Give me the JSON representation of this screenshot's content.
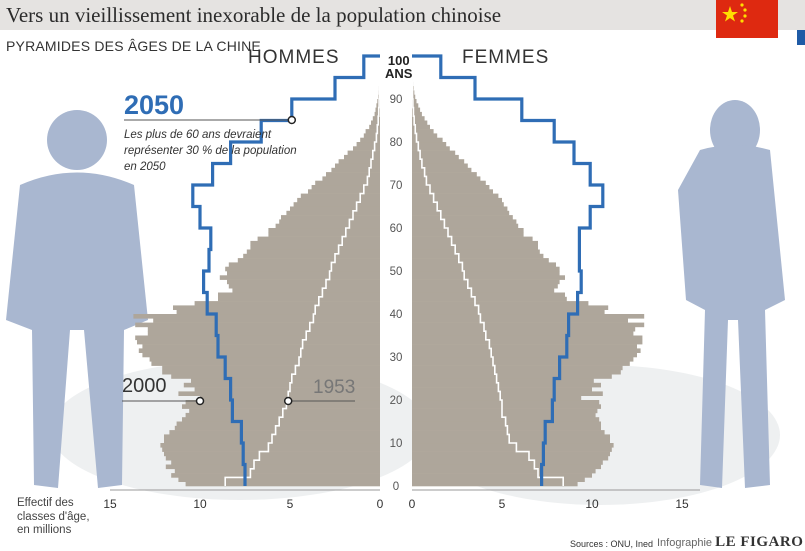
{
  "header": {
    "title": "Vers un vieillissement inexorable de la population chinoise",
    "subtitle": "PYRAMIDES DES ÂGES DE LA CHINE"
  },
  "labels": {
    "men": "HOMMES",
    "women": "FEMMES",
    "age_top_value": "100",
    "age_unit": "ANS",
    "year_2050": "2050",
    "year_2000": "2000",
    "year_1953": "1953",
    "note_2050": "Les plus de 60 ans devraient représenter 30 % de la population en 2050",
    "x_axis_label": "Effectif des classes d'âge, en millions",
    "sources": "Sources : ONU, Ined",
    "credit_prefix": "Infographie",
    "credit_brand": "LE FIGARO"
  },
  "colors": {
    "bars_2000": "#aea69b",
    "line_2050": "#2f6db5",
    "line_1953": "#ffffff",
    "figure_silhouette": "#a9b7d0",
    "flag": "#de2910"
  },
  "chart_data": {
    "type": "bar",
    "orientation": "population-pyramid",
    "title": "PYRAMIDES DES ÂGES DE LA CHINE",
    "xlabel": "Effectif des classes d'âge, en millions",
    "ylabel": "ANS",
    "x_ticks_left": [
      "15",
      "10",
      "5",
      "0"
    ],
    "x_ticks_right": [
      "0",
      "5",
      "10",
      "15"
    ],
    "y_ticks": [
      "0",
      "10",
      "20",
      "30",
      "40",
      "50",
      "60",
      "70",
      "80",
      "90",
      "100"
    ],
    "xlim": [
      0,
      16.5
    ],
    "ylim": [
      0,
      100
    ],
    "series_2000": {
      "name": "2000",
      "kind": "bars",
      "age_step": 1,
      "men": [
        10.8,
        11.2,
        11.6,
        11.4,
        11.9,
        11.6,
        11.9,
        12.0,
        12.1,
        12.2,
        12.0,
        12.0,
        11.7,
        11.4,
        11.3,
        11.0,
        10.8,
        10.6,
        11.0,
        10.8,
        10.0,
        11.2,
        10.3,
        10.9,
        10.5,
        11.6,
        12.1,
        12.1,
        12.7,
        12.8,
        13.2,
        13.4,
        13.2,
        13.5,
        13.6,
        12.9,
        12.9,
        13.6,
        12.6,
        13.7,
        11.3,
        11.5,
        10.3,
        9.0,
        9.0,
        8.2,
        8.4,
        8.5,
        8.9,
        8.5,
        8.6,
        8.4,
        7.9,
        7.6,
        7.4,
        7.2,
        7.2,
        6.8,
        6.2,
        6.2,
        5.8,
        5.6,
        5.5,
        5.2,
        5.0,
        4.8,
        4.6,
        4.4,
        4.0,
        3.8,
        3.6,
        3.2,
        3.0,
        2.7,
        2.5,
        2.3,
        2.0,
        1.8,
        1.5,
        1.3,
        1.1,
        0.9,
        0.8,
        0.6,
        0.5,
        0.4,
        0.3,
        0.25,
        0.2,
        0.15,
        0.1,
        0.08,
        0.06,
        0.04,
        0.03,
        0.02,
        0.01,
        0.01,
        0.0,
        0.0
      ],
      "women": [
        9.2,
        9.6,
        10.0,
        10.2,
        10.5,
        10.6,
        10.9,
        11.0,
        11.1,
        11.2,
        11.0,
        11.0,
        10.7,
        10.5,
        10.5,
        10.4,
        10.2,
        10.3,
        10.5,
        10.4,
        9.4,
        10.6,
        10.0,
        10.5,
        10.1,
        11.1,
        11.6,
        11.7,
        12.1,
        12.3,
        12.5,
        12.7,
        12.5,
        12.8,
        12.8,
        12.3,
        12.4,
        12.9,
        12.0,
        12.9,
        10.7,
        10.9,
        9.8,
        8.6,
        8.5,
        7.9,
        8.1,
        8.2,
        8.5,
        8.2,
        8.2,
        8.0,
        7.6,
        7.3,
        7.1,
        7.0,
        7.0,
        6.7,
        6.2,
        6.2,
        5.9,
        5.8,
        5.6,
        5.4,
        5.3,
        5.1,
        5.0,
        4.8,
        4.5,
        4.3,
        4.1,
        3.8,
        3.6,
        3.3,
        3.1,
        2.9,
        2.6,
        2.4,
        2.1,
        1.9,
        1.7,
        1.4,
        1.2,
        1.0,
        0.85,
        0.7,
        0.55,
        0.45,
        0.35,
        0.25,
        0.18,
        0.13,
        0.09,
        0.06,
        0.04,
        0.03,
        0.02,
        0.01,
        0.0,
        0.0
      ]
    },
    "series_2050": {
      "name": "2050",
      "kind": "step-line",
      "age_bands": [
        0,
        5,
        10,
        15,
        20,
        25,
        30,
        35,
        40,
        45,
        50,
        55,
        60,
        65,
        70,
        75,
        80,
        85,
        90,
        95,
        100
      ],
      "men": [
        7.5,
        7.6,
        7.7,
        8.2,
        8.3,
        8.6,
        9.0,
        9.1,
        9.6,
        9.8,
        9.5,
        9.4,
        10.0,
        10.4,
        9.3,
        8.3,
        6.6,
        4.9,
        2.5,
        0.9
      ],
      "women": [
        7.2,
        7.3,
        7.4,
        7.8,
        7.9,
        8.2,
        8.6,
        8.7,
        9.2,
        9.4,
        9.3,
        9.3,
        9.9,
        10.6,
        9.9,
        9.0,
        7.9,
        6.1,
        3.5,
        1.6
      ]
    },
    "series_1953": {
      "name": "1953",
      "kind": "step-line",
      "age_step": 2,
      "men": [
        8.6,
        7.2,
        7.0,
        6.7,
        6.2,
        6.0,
        5.8,
        5.6,
        5.4,
        5.2,
        5.1,
        5.0,
        4.9,
        4.7,
        4.5,
        4.4,
        4.3,
        4.1,
        3.9,
        3.7,
        3.6,
        3.4,
        3.2,
        3.0,
        2.8,
        2.7,
        2.5,
        2.3,
        2.1,
        1.9,
        1.7,
        1.5,
        1.3,
        1.1,
        0.9,
        0.7,
        0.6,
        0.5,
        0.4,
        0.3,
        0.2,
        0.15,
        0.1,
        0.07,
        0.05,
        0.03,
        0.02,
        0.01,
        0.0,
        0.0
      ],
      "women": [
        8.4,
        7.0,
        6.8,
        6.5,
        5.8,
        5.4,
        5.3,
        5.2,
        5.0,
        5.0,
        4.9,
        4.8,
        4.7,
        4.6,
        4.5,
        4.4,
        4.3,
        4.1,
        4.0,
        3.8,
        3.7,
        3.5,
        3.3,
        3.1,
        2.9,
        2.8,
        2.6,
        2.4,
        2.2,
        2.0,
        1.8,
        1.6,
        1.4,
        1.2,
        1.0,
        0.8,
        0.7,
        0.55,
        0.45,
        0.35,
        0.25,
        0.18,
        0.12,
        0.08,
        0.05,
        0.03,
        0.02,
        0.01,
        0.0,
        0.0
      ]
    }
  }
}
